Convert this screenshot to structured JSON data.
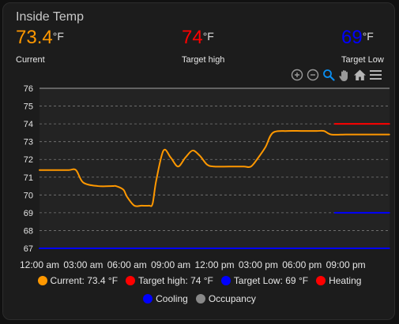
{
  "card": {
    "title": "Inside Temp"
  },
  "stats": [
    {
      "value": "73.4",
      "unit": "°F",
      "label": "Current",
      "color": "#ff9800"
    },
    {
      "value": "74",
      "unit": "°F",
      "label": "Target high",
      "color": "#ff0000"
    },
    {
      "value": "69",
      "unit": "°F",
      "label": "Target Low",
      "color": "#0000ff"
    }
  ],
  "toolbar": {
    "icons": [
      "zoom-in-icon",
      "zoom-out-icon",
      "zoom-selection-icon",
      "pan-hand-icon",
      "home-reset-icon",
      "menu-icon"
    ]
  },
  "chart_data": {
    "type": "line",
    "ylim": [
      67,
      76
    ],
    "y_ticks": [
      "67",
      "68",
      "69",
      "70",
      "71",
      "72",
      "73",
      "74",
      "75",
      "76"
    ],
    "x_ticks": [
      "12:00 am",
      "03:00 am",
      "06:00 am",
      "09:00 am",
      "12:00 pm",
      "03:00 pm",
      "06:00 pm",
      "09:00 pm"
    ],
    "grid": true,
    "legend_position": "bottom",
    "series": [
      {
        "name": "Current: 73.4 °F",
        "color": "#ff9800",
        "x": [
          "12:00 am",
          "01:00 am",
          "02:00 am",
          "02:30 am",
          "03:00 am",
          "04:00 am",
          "05:00 am",
          "05:15 am",
          "05:45 am",
          "06:00 am",
          "06:30 am",
          "07:00 am",
          "07:30 am",
          "07:45 am",
          "08:00 am",
          "08:30 am",
          "09:00 am",
          "09:30 am",
          "10:00 am",
          "10:30 am",
          "11:00 am",
          "11:30 am",
          "12:00 pm",
          "01:00 pm",
          "02:00 pm",
          "02:30 pm",
          "03:00 pm",
          "03:30 pm",
          "04:00 pm",
          "05:00 pm",
          "06:00 pm",
          "07:00 pm",
          "07:30 pm",
          "08:00 pm",
          "09:00 pm",
          "10:00 pm",
          "11:00 pm",
          "11:59 pm"
        ],
        "values": [
          71.4,
          71.4,
          71.4,
          71.4,
          70.7,
          70.5,
          70.5,
          70.5,
          70.3,
          69.9,
          69.4,
          69.4,
          69.4,
          69.5,
          70.8,
          72.5,
          72.1,
          71.6,
          72.1,
          72.5,
          72.2,
          71.7,
          71.6,
          71.6,
          71.6,
          71.6,
          72.1,
          72.7,
          73.5,
          73.6,
          73.6,
          73.6,
          73.6,
          73.4,
          73.4,
          73.4,
          73.4,
          73.4
        ]
      },
      {
        "name": "Target high: 74 °F",
        "color": "#ff0000",
        "x": [
          "08:15 pm",
          "11:59 pm"
        ],
        "values": [
          74,
          74
        ]
      },
      {
        "name": "Target Low: 69 °F",
        "color": "#0000ff",
        "x": [
          "08:15 pm",
          "11:59 pm"
        ],
        "values": [
          69,
          69
        ]
      },
      {
        "name": "Heating",
        "color": "#ff0000",
        "x": [],
        "values": []
      },
      {
        "name": "Cooling",
        "color": "#0000ff",
        "x": [
          "12:00 am",
          "11:59 pm"
        ],
        "values": [
          67,
          67
        ]
      },
      {
        "name": "Occupancy",
        "color": "#888888",
        "x": [],
        "values": []
      }
    ]
  }
}
